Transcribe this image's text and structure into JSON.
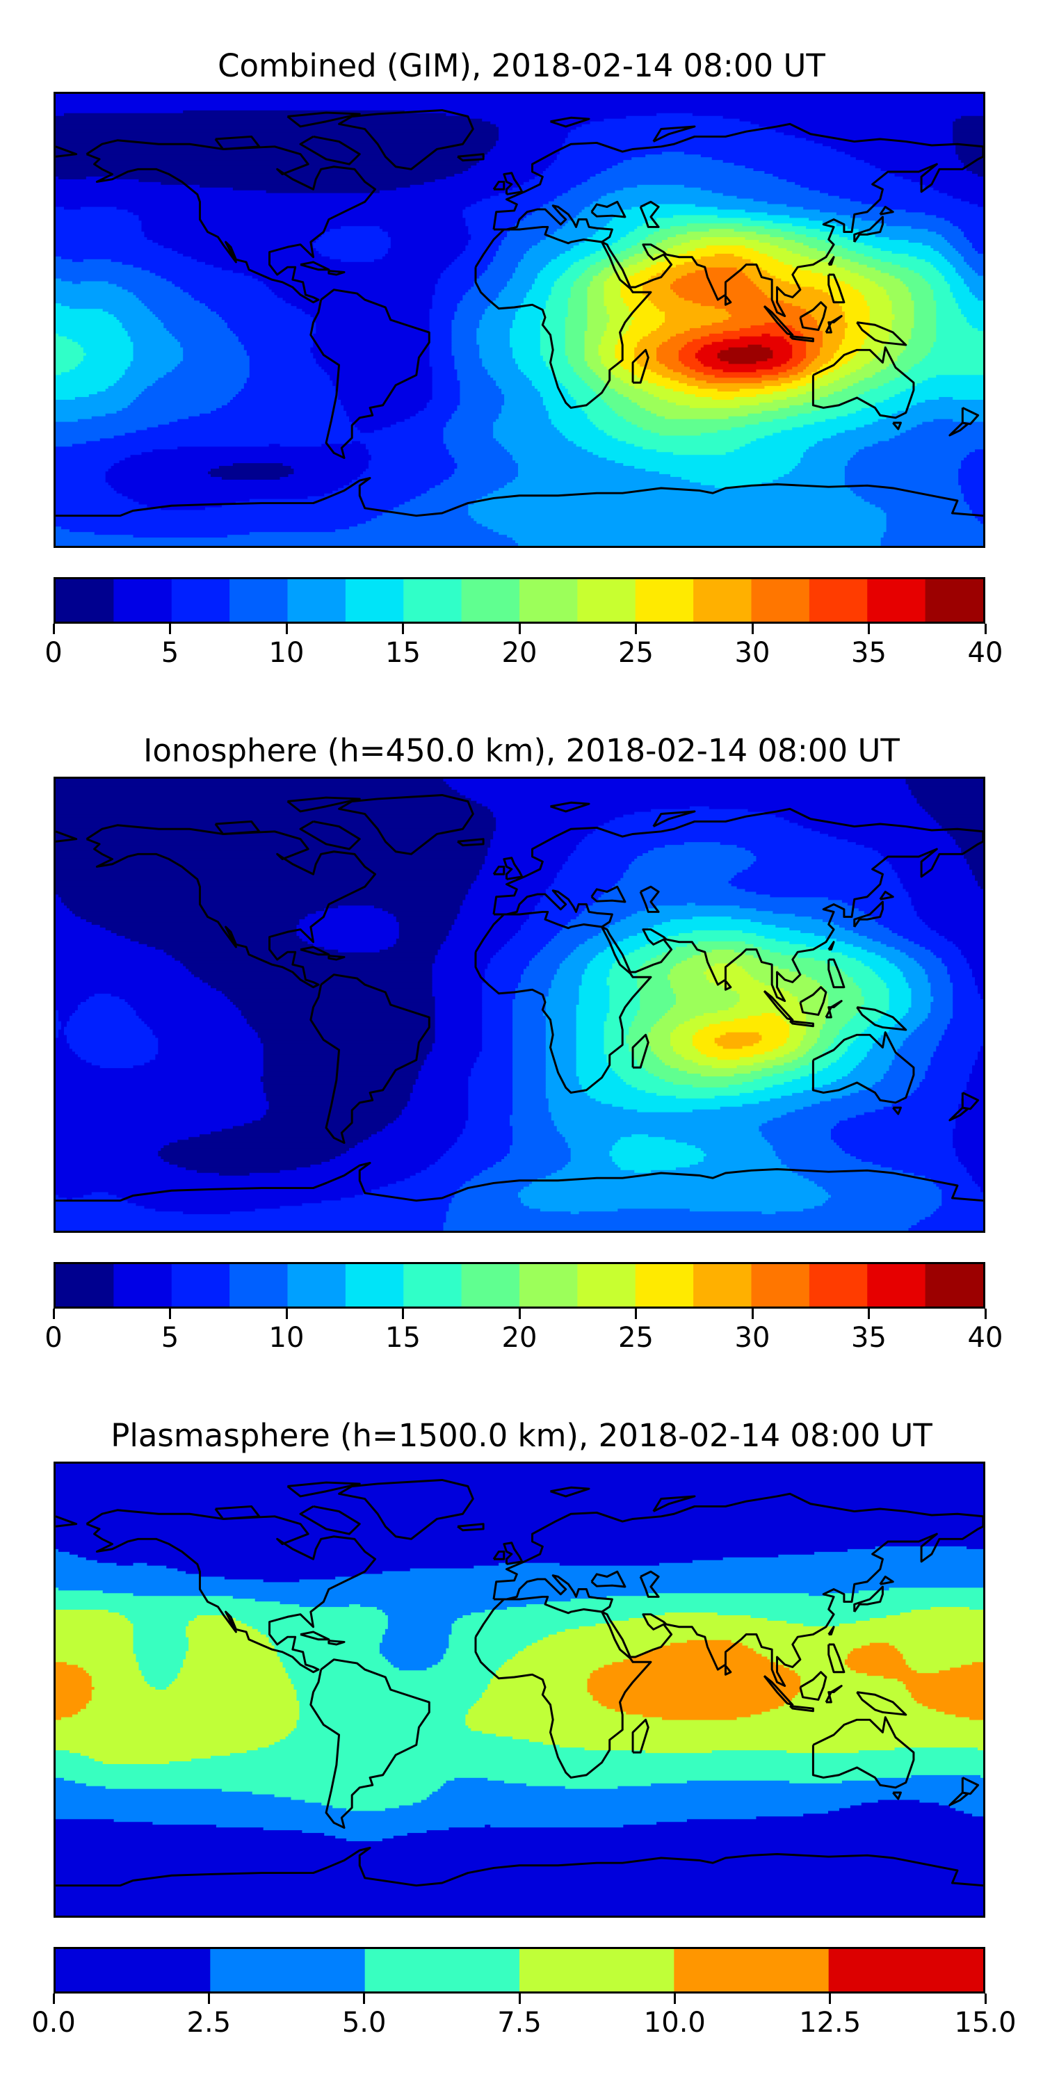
{
  "chart_data": [
    {
      "type": "heatmap",
      "title": "Combined (GIM), 2018-02-14 08:00 UT",
      "xlabel": "",
      "ylabel": "",
      "lon": [
        -180,
        -160,
        -140,
        -120,
        -100,
        -80,
        -60,
        -40,
        -20,
        0,
        20,
        40,
        60,
        80,
        100,
        120,
        140,
        160,
        180
      ],
      "lat": [
        90,
        75,
        60,
        45,
        30,
        15,
        0,
        -15,
        -30,
        -45,
        -60,
        -75,
        -90
      ],
      "values": [
        [
          3.5,
          3.5,
          3.5,
          3.5,
          3.5,
          3.5,
          3.5,
          3.5,
          3.5,
          3.5,
          3.5,
          3.5,
          3.5,
          3.5,
          3.5,
          3.5,
          3,
          2.5,
          2
        ],
        [
          1.8,
          1.5,
          1.5,
          1.2,
          1,
          1,
          1,
          1.5,
          2,
          3,
          5,
          6,
          6.5,
          6,
          5,
          4.5,
          4,
          3,
          2
        ],
        [
          2,
          2,
          1.5,
          1.2,
          1,
          1,
          1,
          1.5,
          2.5,
          4,
          6,
          8,
          8.5,
          8,
          7,
          6,
          5,
          4,
          3
        ],
        [
          5,
          5,
          4.5,
          4,
          3.5,
          3.5,
          3.5,
          4,
          5,
          6.5,
          9,
          12,
          13,
          12,
          10.5,
          9,
          7.5,
          6.5,
          5.5
        ],
        [
          6.5,
          6,
          5,
          4,
          4,
          5,
          6,
          4,
          5,
          9,
          12,
          16,
          22,
          25,
          22,
          18,
          14,
          12,
          9
        ],
        [
          10.5,
          10,
          8,
          6,
          5,
          4,
          3.5,
          4,
          7,
          11,
          17,
          25,
          30,
          32,
          28,
          26,
          22,
          17,
          12
        ],
        [
          14,
          13,
          10,
          8,
          6,
          5,
          3.5,
          4,
          9,
          13,
          18,
          24,
          28,
          30,
          32,
          29,
          24,
          18,
          14
        ],
        [
          16,
          14,
          11,
          9,
          7,
          5,
          4,
          4,
          9,
          13,
          18,
          26,
          32,
          38,
          37,
          28,
          22,
          17,
          16
        ],
        [
          13,
          12,
          9,
          8,
          7,
          6,
          4,
          4,
          8,
          11,
          15,
          20,
          24,
          26,
          24,
          20,
          16,
          13,
          13
        ],
        [
          9,
          8,
          7,
          6.5,
          6.5,
          6,
          5,
          6,
          9,
          11,
          13,
          16,
          18,
          17,
          15,
          13,
          11,
          9,
          9
        ],
        [
          6,
          5,
          3,
          2.5,
          2,
          3,
          5,
          6,
          8,
          10,
          11,
          12,
          13,
          14,
          13,
          11,
          8,
          9,
          7
        ],
        [
          7,
          6,
          5,
          5,
          6,
          6,
          7,
          8,
          10,
          11,
          11,
          11,
          11,
          11,
          11,
          11,
          10,
          9,
          8
        ],
        [
          8,
          8,
          8,
          8,
          8,
          8,
          8,
          8,
          9,
          10,
          11,
          11,
          11,
          11,
          11,
          11,
          10,
          9,
          8
        ]
      ],
      "colorbar": {
        "range": [
          0,
          40
        ],
        "step": 2.5,
        "colors": [
          "#00008f",
          "#0000e6",
          "#0020ff",
          "#0060ff",
          "#00a0ff",
          "#00e4f8",
          "#30ffc8",
          "#60ff90",
          "#9cff5a",
          "#c8ff30",
          "#ffea00",
          "#ffb000",
          "#ff7600",
          "#ff3c00",
          "#e60000",
          "#9c0000"
        ],
        "ticks": [
          0,
          5,
          10,
          15,
          20,
          25,
          30,
          35,
          40
        ],
        "tick_labels": [
          "0",
          "5",
          "10",
          "15",
          "20",
          "25",
          "30",
          "35",
          "40"
        ]
      }
    },
    {
      "type": "heatmap",
      "title": "Ionosphere  (h=450.0 km), 2018-02-14 08:00 UT",
      "xlabel": "",
      "ylabel": "",
      "lon": [
        -180,
        -160,
        -140,
        -120,
        -100,
        -80,
        -60,
        -40,
        -20,
        0,
        20,
        40,
        60,
        80,
        100,
        120,
        140,
        160,
        180
      ],
      "lat": [
        90,
        75,
        60,
        45,
        30,
        15,
        0,
        -15,
        -30,
        -45,
        -60,
        -75,
        -90
      ],
      "values": [
        [
          2,
          2,
          2,
          2,
          2,
          2,
          2,
          2,
          3,
          3.5,
          3.5,
          3.5,
          3.5,
          3.5,
          3.5,
          3.5,
          3,
          2,
          2
        ],
        [
          1.5,
          1.2,
          1,
          1,
          1,
          1,
          1,
          1.2,
          2,
          3,
          4,
          5,
          5.5,
          5.5,
          5,
          4,
          3.5,
          2.5,
          1.5
        ],
        [
          2,
          1.5,
          1,
          1,
          1,
          1,
          1,
          1.2,
          2,
          3.5,
          5,
          7,
          8,
          8,
          7,
          6,
          5,
          3.5,
          2.5
        ],
        [
          2.5,
          2,
          1.5,
          1.2,
          1.2,
          1.5,
          1.5,
          1.5,
          2.5,
          4,
          6,
          8,
          8.5,
          8,
          7,
          7,
          6,
          4,
          3
        ],
        [
          3,
          2.5,
          2,
          1.5,
          1.5,
          3,
          4,
          2,
          3,
          5,
          8,
          11,
          14,
          15,
          13,
          11,
          8,
          5,
          3.5
        ],
        [
          4,
          3.5,
          3,
          2,
          1.5,
          1.5,
          1.5,
          2,
          4,
          7,
          11,
          16,
          20,
          23,
          20,
          18,
          14,
          9,
          5
        ],
        [
          5,
          5.5,
          4,
          3,
          2,
          1.5,
          1.5,
          2,
          4,
          8,
          12,
          16,
          20,
          22,
          24,
          20,
          16,
          10,
          6
        ],
        [
          5,
          6,
          5,
          3.5,
          2.5,
          2,
          1.5,
          2,
          4,
          8,
          12,
          17,
          23,
          28,
          26,
          18,
          12,
          8,
          6
        ],
        [
          4.5,
          4.5,
          4.5,
          3.5,
          2.5,
          2,
          1.5,
          2.5,
          5,
          8,
          12,
          15,
          18,
          19,
          16,
          13,
          10,
          7,
          5
        ],
        [
          4,
          4,
          3.5,
          3,
          2.5,
          2,
          2,
          3,
          5,
          8,
          11,
          12,
          12,
          11,
          10,
          8,
          7,
          6,
          5
        ],
        [
          4,
          3.5,
          2.5,
          2,
          1.5,
          2,
          3,
          4,
          6,
          8,
          10,
          13,
          13,
          12,
          10,
          8,
          7,
          6,
          5
        ],
        [
          5,
          5,
          4,
          3.5,
          4,
          4.5,
          5,
          6,
          8,
          10,
          11,
          11,
          11,
          11,
          11,
          10,
          9,
          8,
          6
        ],
        [
          6,
          6,
          6,
          6,
          6,
          6,
          6,
          7,
          8,
          9,
          9,
          9,
          9,
          9,
          9,
          9,
          8,
          7,
          6
        ]
      ],
      "colorbar": {
        "range": [
          0,
          40
        ],
        "step": 2.5,
        "colors": [
          "#00008f",
          "#0000e6",
          "#0020ff",
          "#0060ff",
          "#00a0ff",
          "#00e4f8",
          "#30ffc8",
          "#60ff90",
          "#9cff5a",
          "#c8ff30",
          "#ffea00",
          "#ffb000",
          "#ff7600",
          "#ff3c00",
          "#e60000",
          "#9c0000"
        ],
        "ticks": [
          0,
          5,
          10,
          15,
          20,
          25,
          30,
          35,
          40
        ],
        "tick_labels": [
          "0",
          "5",
          "10",
          "15",
          "20",
          "25",
          "30",
          "35",
          "40"
        ]
      }
    },
    {
      "type": "heatmap",
      "title": "Plasmasphere (h=1500.0 km), 2018-02-14 08:00 UT",
      "xlabel": "",
      "ylabel": "",
      "lon": [
        -180,
        -160,
        -140,
        -120,
        -100,
        -80,
        -60,
        -40,
        -20,
        0,
        20,
        40,
        60,
        80,
        100,
        120,
        140,
        160,
        180
      ],
      "lat": [
        90,
        75,
        60,
        45,
        30,
        15,
        0,
        -15,
        -30,
        -45,
        -60,
        -75,
        -90
      ],
      "values": [
        [
          1,
          1,
          1,
          1,
          1,
          1,
          1,
          1,
          1,
          1,
          1,
          1,
          1,
          1,
          1,
          1,
          1,
          1,
          1
        ],
        [
          1.5,
          1.5,
          1.5,
          1.5,
          1.5,
          1.5,
          1.5,
          1.5,
          1.5,
          1.5,
          1.5,
          1.5,
          1.5,
          1.5,
          1.5,
          1.5,
          1.5,
          1.5,
          1.5
        ],
        [
          2.2,
          2,
          2,
          2,
          2,
          2,
          2,
          2,
          2,
          2,
          2,
          2,
          2,
          2,
          2,
          2,
          2.2,
          2.3,
          2.2
        ],
        [
          3.7,
          3.2,
          3,
          2.5,
          2.2,
          2.3,
          2.6,
          2.7,
          2.8,
          3,
          3,
          3,
          3.2,
          3.4,
          3.5,
          3.8,
          4,
          4,
          3.7
        ],
        [
          8,
          7.8,
          6.5,
          7.5,
          6.5,
          5.5,
          5.5,
          4.3,
          5,
          5.5,
          6.3,
          7,
          7.6,
          7.5,
          7,
          6.5,
          7.2,
          8,
          8
        ],
        [
          9.5,
          9,
          6.5,
          8.5,
          8,
          6,
          5.5,
          4,
          6,
          7.5,
          9,
          9.5,
          10.5,
          10.8,
          9.5,
          9.5,
          10.5,
          9,
          9.5
        ],
        [
          11,
          9.5,
          7.5,
          9,
          8.5,
          7,
          6.5,
          6,
          7,
          8.5,
          9.5,
          11,
          11.5,
          11.5,
          10.5,
          9.5,
          9.5,
          10.5,
          11
        ],
        [
          9.5,
          9,
          9,
          9,
          8.5,
          7,
          6.5,
          6.5,
          7.5,
          8,
          8.5,
          9,
          9.5,
          9.5,
          9,
          8.5,
          8.5,
          9,
          9.5
        ],
        [
          6,
          7.4,
          7.4,
          7,
          6.5,
          6,
          5.8,
          5.5,
          5.5,
          6,
          6.5,
          6.5,
          6.5,
          6.3,
          6.5,
          6.8,
          6.5,
          6,
          6
        ],
        [
          3.2,
          3.5,
          3.8,
          4,
          4.5,
          5,
          5.5,
          5,
          4,
          4,
          4,
          4,
          3.5,
          3.3,
          3.2,
          3,
          2.4,
          2.5,
          3.2
        ],
        [
          1.8,
          1.8,
          1.8,
          1.8,
          1.8,
          2,
          2.6,
          2,
          1.8,
          1.8,
          1.8,
          1.8,
          1.8,
          1.8,
          1.8,
          1.8,
          1.8,
          1.8,
          1.8
        ],
        [
          1.2,
          1.2,
          1.2,
          1.2,
          1.2,
          1.2,
          1.2,
          1.2,
          1.2,
          1.2,
          1.2,
          1.2,
          1.2,
          1.2,
          1.2,
          1.2,
          1.2,
          1.2,
          1.2
        ],
        [
          1,
          1,
          1,
          1,
          1,
          1,
          1,
          1,
          1,
          1,
          1,
          1,
          1,
          1,
          1,
          1,
          1,
          1,
          1
        ]
      ],
      "colorbar": {
        "range": [
          0,
          15
        ],
        "step": 2.5,
        "colors": [
          "#0000dc",
          "#0080ff",
          "#38ffc0",
          "#c0ff38",
          "#ff9600",
          "#dc0000"
        ],
        "ticks": [
          0,
          2.5,
          5,
          7.5,
          10,
          12.5,
          15
        ],
        "tick_labels": [
          "0.0",
          "2.5",
          "5.0",
          "7.5",
          "10.0",
          "12.5",
          "15.0"
        ]
      }
    }
  ]
}
